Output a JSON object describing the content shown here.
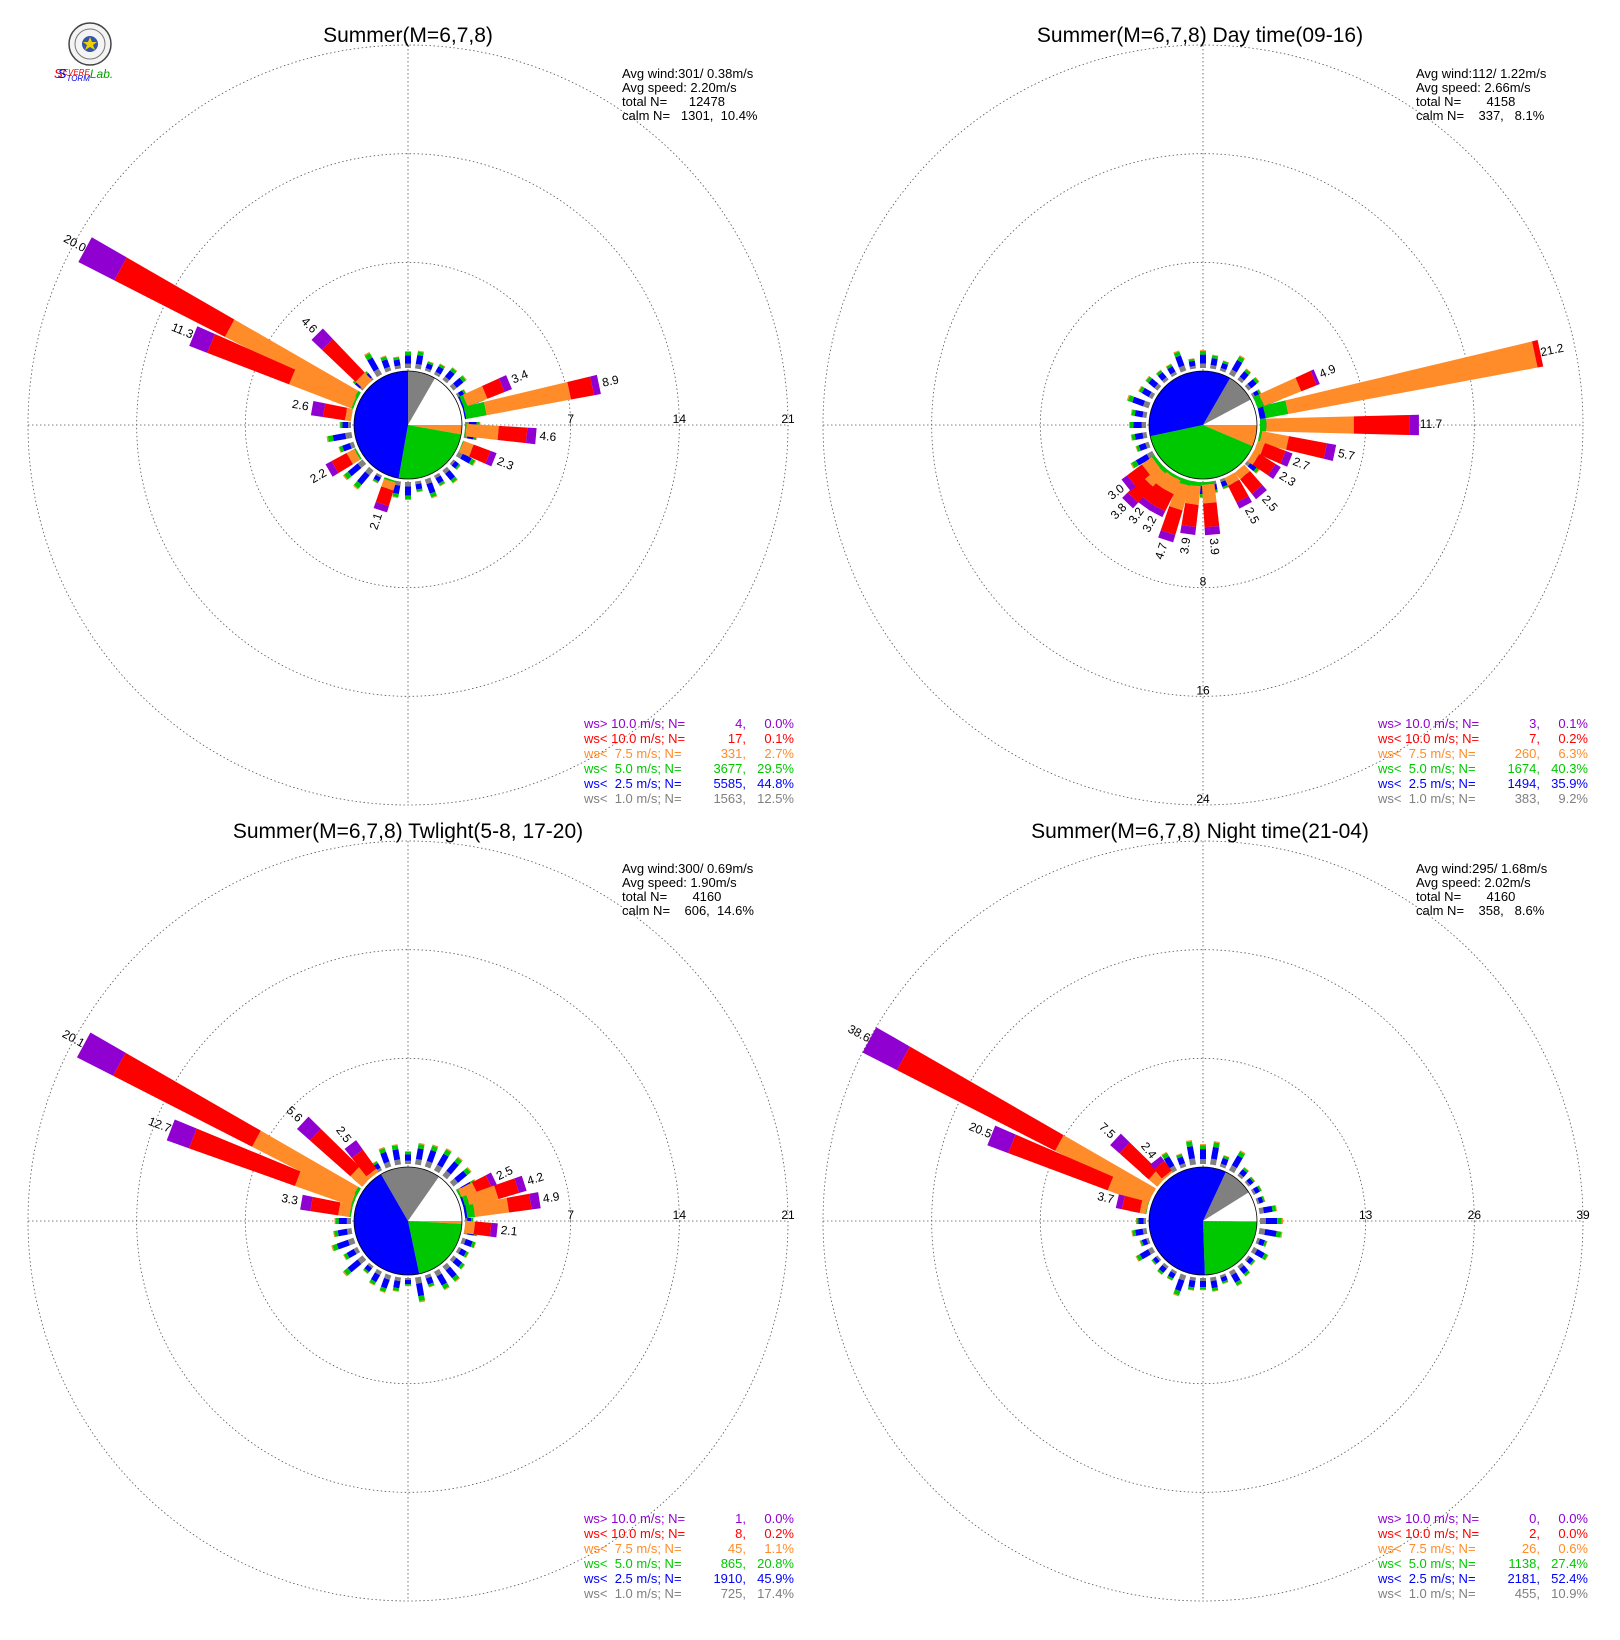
{
  "logo": {
    "text_parts": [
      {
        "text": "S",
        "color": "#e00000"
      },
      {
        "text": "EVERE",
        "color": "#e00000"
      },
      {
        "text": "S",
        "color": "#0000e0"
      },
      {
        "text": "TORM",
        "color": "#0000e0"
      },
      {
        "text": "Lab.",
        "color": "#00a000"
      }
    ]
  },
  "colors": {
    "gt10": "#9000d0",
    "lt10": "#ff0000",
    "lt7_5": "#ff8c28",
    "lt5": "#00c800",
    "lt2_5": "#0000ff",
    "lt1": "#808080"
  },
  "chart_data": [
    {
      "type": "wind-rose",
      "title": "Summer(M=6,7,8)",
      "stats": {
        "avg_wind": "Avg wind:301/ 0.38m/s",
        "avg_speed": "Avg speed: 2.20m/s",
        "total": "total N=      12478",
        "calm": "calm N=   1301,  10.4%"
      },
      "ring_labels": [
        "7",
        "14",
        "21"
      ],
      "ring_label_side": "east",
      "ring_max": 21,
      "petal_labels": [
        {
          "text": "20.0",
          "dir": 298.5,
          "value": 20.0
        },
        {
          "text": "11.3",
          "dir": 292.5,
          "value": 11.3
        },
        {
          "text": "4.6",
          "dir": 315,
          "value": 4.6
        },
        {
          "text": "2.6",
          "dir": 280,
          "value": 2.6
        },
        {
          "text": "2.2",
          "dir": 240,
          "value": 2.2
        },
        {
          "text": "2.1",
          "dir": 198,
          "value": 2.1
        },
        {
          "text": "3.4",
          "dir": 67,
          "value": 3.4
        },
        {
          "text": "8.9",
          "dir": 78,
          "value": 8.9
        },
        {
          "text": "4.6",
          "dir": 95,
          "value": 4.6
        },
        {
          "text": "2.3",
          "dir": 112,
          "value": 2.3
        }
      ],
      "petals": [
        {
          "dir": 298.5,
          "value": 20.0,
          "split": [
            0,
            0,
            0.01,
            0.46,
            0.4,
            0.13
          ]
        },
        {
          "dir": 292.5,
          "value": 11.3,
          "split": [
            0,
            0,
            0.01,
            0.38,
            0.5,
            0.11
          ]
        },
        {
          "dir": 315,
          "value": 4.6,
          "split": [
            0,
            0,
            0,
            0.15,
            0.65,
            0.2
          ]
        },
        {
          "dir": 280,
          "value": 2.6,
          "split": [
            0,
            0,
            0,
            0.15,
            0.55,
            0.3
          ]
        },
        {
          "dir": 240,
          "value": 2.2,
          "split": [
            0,
            0,
            0.05,
            0.25,
            0.5,
            0.2
          ]
        },
        {
          "dir": 198,
          "value": 2.1,
          "split": [
            0,
            0,
            0.05,
            0.25,
            0.5,
            0.2
          ]
        },
        {
          "dir": 67,
          "value": 3.4,
          "split": [
            0,
            0.03,
            0.07,
            0.4,
            0.35,
            0.15
          ]
        },
        {
          "dir": 78,
          "value": 8.9,
          "split": [
            0,
            0.01,
            0.15,
            0.62,
            0.17,
            0.05
          ]
        },
        {
          "dir": 95,
          "value": 4.6,
          "split": [
            0,
            0,
            0.02,
            0.45,
            0.4,
            0.13
          ]
        },
        {
          "dir": 112,
          "value": 2.3,
          "split": [
            0,
            0,
            0.02,
            0.3,
            0.5,
            0.18
          ]
        }
      ],
      "pie": [
        {
          "name": "lt1",
          "start": 0,
          "end": 30
        },
        {
          "name": "calm",
          "start": 30,
          "end": 90
        },
        {
          "name": "lt7_5",
          "start": 90,
          "end": 100
        },
        {
          "name": "lt5",
          "start": 100,
          "end": 190
        },
        {
          "name": "lt2_5",
          "start": 190,
          "end": 360
        }
      ],
      "legend": [
        {
          "label": "ws> 10.0 m/s; N=",
          "n": "4",
          "pct": "0.0%",
          "color_key": "gt10"
        },
        {
          "label": "ws< 10.0 m/s; N=",
          "n": "17",
          "pct": "0.1%",
          "color_key": "lt10"
        },
        {
          "label": "ws<  7.5 m/s; N=",
          "n": "331",
          "pct": "2.7%",
          "color_key": "lt7_5"
        },
        {
          "label": "ws<  5.0 m/s; N=",
          "n": "3677",
          "pct": "29.5%",
          "color_key": "lt5"
        },
        {
          "label": "ws<  2.5 m/s; N=",
          "n": "5585",
          "pct": "44.8%",
          "color_key": "lt2_5"
        },
        {
          "label": "ws<  1.0 m/s; N=",
          "n": "1563",
          "pct": "12.5%",
          "color_key": "lt1"
        }
      ]
    },
    {
      "type": "wind-rose",
      "title": "Summer(M=6,7,8) Day time(09-16)",
      "stats": {
        "avg_wind": "Avg wind:112/ 1.22m/s",
        "avg_speed": "Avg speed: 2.66m/s",
        "total": "total N=       4158",
        "calm": "calm N=    337,   8.1%"
      },
      "ring_labels": [
        "8",
        "16",
        "24"
      ],
      "ring_label_side": "south",
      "ring_max": 24,
      "petal_labels": [
        {
          "text": "21.2",
          "dir": 78,
          "value": 21.2
        },
        {
          "text": "11.7",
          "dir": 90,
          "value": 11.7
        },
        {
          "text": "4.9",
          "dir": 67,
          "value": 4.9
        },
        {
          "text": "5.7",
          "dir": 102,
          "value": 5.7
        },
        {
          "text": "2.7",
          "dir": 112,
          "value": 2.7
        },
        {
          "text": "2.3",
          "dir": 123,
          "value": 2.3
        },
        {
          "text": "2.5",
          "dir": 140,
          "value": 2.5
        },
        {
          "text": "2.5",
          "dir": 152,
          "value": 2.5
        },
        {
          "text": "3.9",
          "dir": 175,
          "value": 3.9
        },
        {
          "text": "3.9",
          "dir": 188,
          "value": 3.9
        },
        {
          "text": "4.7",
          "dir": 198,
          "value": 4.7
        },
        {
          "text": "3.2",
          "dir": 208,
          "value": 3.2
        },
        {
          "text": "3.2",
          "dir": 216,
          "value": 3.2
        },
        {
          "text": "3.8",
          "dir": 224,
          "value": 3.8
        },
        {
          "text": "3.0",
          "dir": 232,
          "value": 3.0
        }
      ],
      "petals": [
        {
          "dir": 78,
          "value": 21.2,
          "split": [
            0,
            0.02,
            0.08,
            0.88,
            0.02,
            0
          ]
        },
        {
          "dir": 90,
          "value": 11.7,
          "split": [
            0,
            0,
            0.04,
            0.55,
            0.35,
            0.06
          ]
        },
        {
          "dir": 67,
          "value": 4.9,
          "split": [
            0,
            0,
            0.1,
            0.6,
            0.25,
            0.05
          ]
        },
        {
          "dir": 102,
          "value": 5.7,
          "split": [
            0,
            0,
            0.03,
            0.35,
            0.5,
            0.12
          ]
        },
        {
          "dir": 112,
          "value": 2.7,
          "split": [
            0,
            0,
            0,
            0.2,
            0.6,
            0.2
          ]
        },
        {
          "dir": 123,
          "value": 2.3,
          "split": [
            0,
            0,
            0,
            0.2,
            0.6,
            0.2
          ]
        },
        {
          "dir": 140,
          "value": 2.5,
          "split": [
            0,
            0,
            0,
            0.25,
            0.55,
            0.2
          ]
        },
        {
          "dir": 152,
          "value": 2.5,
          "split": [
            0,
            0,
            0,
            0.25,
            0.55,
            0.2
          ]
        },
        {
          "dir": 175,
          "value": 3.9,
          "split": [
            0,
            0,
            0.05,
            0.35,
            0.45,
            0.15
          ]
        },
        {
          "dir": 188,
          "value": 3.9,
          "split": [
            0,
            0,
            0.08,
            0.35,
            0.42,
            0.15
          ]
        },
        {
          "dir": 198,
          "value": 4.7,
          "split": [
            0,
            0,
            0.08,
            0.4,
            0.4,
            0.12
          ]
        },
        {
          "dir": 208,
          "value": 3.2,
          "split": [
            0,
            0,
            0.06,
            0.35,
            0.44,
            0.15
          ]
        },
        {
          "dir": 216,
          "value": 3.2,
          "split": [
            0,
            0,
            0.06,
            0.35,
            0.44,
            0.15
          ]
        },
        {
          "dir": 224,
          "value": 3.8,
          "split": [
            0,
            0,
            0.08,
            0.35,
            0.42,
            0.15
          ]
        },
        {
          "dir": 232,
          "value": 3.0,
          "split": [
            0,
            0,
            0.08,
            0.3,
            0.45,
            0.17
          ]
        }
      ],
      "pie": [
        {
          "name": "lt1",
          "start": 30,
          "end": 62
        },
        {
          "name": "calm",
          "start": 62,
          "end": 90
        },
        {
          "name": "lt7_5",
          "start": 90,
          "end": 113
        },
        {
          "name": "lt5",
          "start": 113,
          "end": 258
        },
        {
          "name": "lt2_5",
          "start": 258,
          "end": 390
        }
      ],
      "legend": [
        {
          "label": "ws> 10.0 m/s; N=",
          "n": "3",
          "pct": "0.1%",
          "color_key": "gt10"
        },
        {
          "label": "ws< 10.0 m/s; N=",
          "n": "7",
          "pct": "0.2%",
          "color_key": "lt10"
        },
        {
          "label": "ws<  7.5 m/s; N=",
          "n": "260",
          "pct": "6.3%",
          "color_key": "lt7_5"
        },
        {
          "label": "ws<  5.0 m/s; N=",
          "n": "1674",
          "pct": "40.3%",
          "color_key": "lt5"
        },
        {
          "label": "ws<  2.5 m/s; N=",
          "n": "1494",
          "pct": "35.9%",
          "color_key": "lt2_5"
        },
        {
          "label": "ws<  1.0 m/s; N=",
          "n": "383",
          "pct": "9.2%",
          "color_key": "lt1"
        }
      ]
    },
    {
      "type": "wind-rose",
      "title": "Summer(M=6,7,8) Twlight(5-8, 17-20)",
      "stats": {
        "avg_wind": "Avg wind:300/ 0.69m/s",
        "avg_speed": "Avg speed: 1.90m/s",
        "total": "total N=       4160",
        "calm": "calm N=    606,  14.6%"
      },
      "ring_labels": [
        "7",
        "14",
        "21"
      ],
      "ring_label_side": "east",
      "ring_max": 21,
      "petal_labels": [
        {
          "text": "20.1",
          "dir": 298.5,
          "value": 20.1
        },
        {
          "text": "12.7",
          "dir": 291,
          "value": 12.7
        },
        {
          "text": "5.6",
          "dir": 313,
          "value": 5.6
        },
        {
          "text": "2.5",
          "dir": 323,
          "value": 2.5
        },
        {
          "text": "3.3",
          "dir": 280,
          "value": 3.3
        },
        {
          "text": "2.5",
          "dir": 64,
          "value": 2.5
        },
        {
          "text": "4.2",
          "dir": 72,
          "value": 4.2
        },
        {
          "text": "4.9",
          "dir": 81,
          "value": 4.9
        },
        {
          "text": "2.1",
          "dir": 96,
          "value": 2.1
        }
      ],
      "petals": [
        {
          "dir": 298.5,
          "value": 20.1,
          "split": [
            0,
            0,
            0.01,
            0.36,
            0.5,
            0.13
          ]
        },
        {
          "dir": 291,
          "value": 12.7,
          "split": [
            0,
            0,
            0.01,
            0.3,
            0.57,
            0.12
          ]
        },
        {
          "dir": 313,
          "value": 5.6,
          "split": [
            0,
            0,
            0,
            0.18,
            0.62,
            0.2
          ]
        },
        {
          "dir": 323,
          "value": 2.5,
          "split": [
            0,
            0,
            0,
            0.1,
            0.6,
            0.3
          ]
        },
        {
          "dir": 280,
          "value": 3.3,
          "split": [
            0,
            0,
            0.03,
            0.22,
            0.55,
            0.2
          ]
        },
        {
          "dir": 64,
          "value": 2.5,
          "split": [
            0,
            0,
            0.05,
            0.4,
            0.4,
            0.15
          ]
        },
        {
          "dir": 72,
          "value": 4.2,
          "split": [
            0,
            0.03,
            0.07,
            0.45,
            0.33,
            0.12
          ]
        },
        {
          "dir": 81,
          "value": 4.9,
          "split": [
            0,
            0.03,
            0.1,
            0.45,
            0.3,
            0.12
          ]
        },
        {
          "dir": 96,
          "value": 2.1,
          "split": [
            0,
            0,
            0,
            0.3,
            0.5,
            0.2
          ]
        }
      ],
      "pie": [
        {
          "name": "lt1",
          "start": 330,
          "end": 395
        },
        {
          "name": "calm",
          "start": 35,
          "end": 90
        },
        {
          "name": "lt7_5",
          "start": 90,
          "end": 93
        },
        {
          "name": "lt5",
          "start": 93,
          "end": 168
        },
        {
          "name": "lt2_5",
          "start": 168,
          "end": 330
        }
      ],
      "legend": [
        {
          "label": "ws> 10.0 m/s; N=",
          "n": "1",
          "pct": "0.0%",
          "color_key": "gt10"
        },
        {
          "label": "ws< 10.0 m/s; N=",
          "n": "8",
          "pct": "0.2%",
          "color_key": "lt10"
        },
        {
          "label": "ws<  7.5 m/s; N=",
          "n": "45",
          "pct": "1.1%",
          "color_key": "lt7_5"
        },
        {
          "label": "ws<  5.0 m/s; N=",
          "n": "865",
          "pct": "20.8%",
          "color_key": "lt5"
        },
        {
          "label": "ws<  2.5 m/s; N=",
          "n": "1910",
          "pct": "45.9%",
          "color_key": "lt2_5"
        },
        {
          "label": "ws<  1.0 m/s; N=",
          "n": "725",
          "pct": "17.4%",
          "color_key": "lt1"
        }
      ]
    },
    {
      "type": "wind-rose",
      "title": "Summer(M=6,7,8) Night time(21-04)",
      "stats": {
        "avg_wind": "Avg wind:295/ 1.68m/s",
        "avg_speed": "Avg speed: 2.02m/s",
        "total": "total N=       4160",
        "calm": "calm N=    358,   8.6%"
      },
      "ring_labels": [
        "13",
        "26",
        "39"
      ],
      "ring_label_side": "east",
      "ring_max": 39,
      "petal_labels": [
        {
          "text": "38.6",
          "dir": 298.5,
          "value": 38.6
        },
        {
          "text": "20.5",
          "dir": 292,
          "value": 20.5
        },
        {
          "text": "7.5",
          "dir": 313,
          "value": 7.5
        },
        {
          "text": "2.4",
          "dir": 322,
          "value": 2.4
        },
        {
          "text": "3.7",
          "dir": 283,
          "value": 3.7
        }
      ],
      "petals": [
        {
          "dir": 298.5,
          "value": 38.6,
          "split": [
            0,
            0,
            0,
            0.33,
            0.55,
            0.12
          ]
        },
        {
          "dir": 292,
          "value": 20.5,
          "split": [
            0,
            0,
            0,
            0.25,
            0.62,
            0.13
          ]
        },
        {
          "dir": 313,
          "value": 7.5,
          "split": [
            0,
            0,
            0,
            0.18,
            0.62,
            0.2
          ]
        },
        {
          "dir": 322,
          "value": 2.4,
          "split": [
            0,
            0,
            0,
            0.1,
            0.6,
            0.3
          ]
        },
        {
          "dir": 283,
          "value": 3.7,
          "split": [
            0,
            0,
            0.02,
            0.2,
            0.58,
            0.2
          ]
        }
      ],
      "pie": [
        {
          "name": "lt1",
          "start": 25,
          "end": 58
        },
        {
          "name": "calm",
          "start": 58,
          "end": 90
        },
        {
          "name": "lt7_5",
          "start": 90,
          "end": 91
        },
        {
          "name": "lt5",
          "start": 91,
          "end": 178
        },
        {
          "name": "lt2_5",
          "start": 178,
          "end": 385
        }
      ],
      "legend": [
        {
          "label": "ws> 10.0 m/s; N=",
          "n": "0",
          "pct": "0.0%",
          "color_key": "gt10"
        },
        {
          "label": "ws< 10.0 m/s; N=",
          "n": "2",
          "pct": "0.0%",
          "color_key": "lt10"
        },
        {
          "label": "ws<  7.5 m/s; N=",
          "n": "26",
          "pct": "0.6%",
          "color_key": "lt7_5"
        },
        {
          "label": "ws<  5.0 m/s; N=",
          "n": "1138",
          "pct": "27.4%",
          "color_key": "lt5"
        },
        {
          "label": "ws<  2.5 m/s; N=",
          "n": "2181",
          "pct": "52.4%",
          "color_key": "lt2_5"
        },
        {
          "label": "ws<  1.0 m/s; N=",
          "n": "455",
          "pct": "10.9%",
          "color_key": "lt1"
        }
      ]
    }
  ]
}
